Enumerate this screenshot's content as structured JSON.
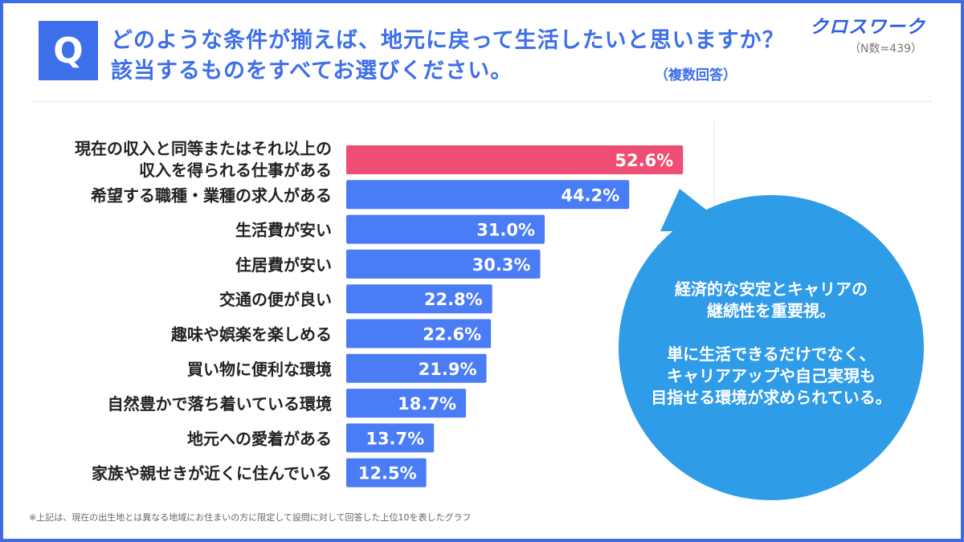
{
  "question": {
    "badge": "Q",
    "line1": "どのような条件が揃えば、地元に戻って生活したいと思いますか？",
    "line2": "該当するものをすべてお選びください。",
    "multi_answer_note": "（複数回答）"
  },
  "brand": {
    "name": "クロスワーク",
    "sample_size": "（N数=439）"
  },
  "chart_data": {
    "type": "bar",
    "orientation": "horizontal",
    "categories": [
      [
        "現在の収入と同等またはそれ以上の",
        "収入を得られる仕事がある"
      ],
      [
        "希望する職種・業種の求人がある"
      ],
      [
        "生活費が安い"
      ],
      [
        "住居費が安い"
      ],
      [
        "交通の便が良い"
      ],
      [
        "趣味や娯楽を楽しめる"
      ],
      [
        "買い物に便利な環境"
      ],
      [
        "自然豊かで落ち着いている環境"
      ],
      [
        "地元への愛着がある"
      ],
      [
        "家族や親せきが近くに住んでいる"
      ]
    ],
    "values": [
      52.6,
      44.2,
      31.0,
      30.3,
      22.8,
      22.6,
      21.9,
      18.7,
      13.7,
      12.5
    ],
    "value_labels": [
      "52.6%",
      "44.2%",
      "31.0%",
      "30.3%",
      "22.8%",
      "22.6%",
      "21.9%",
      "18.7%",
      "13.7%",
      "12.5%"
    ],
    "unit": "%",
    "highlight_color": "#ee4d74",
    "bar_color": "#4a7cf6",
    "xlim": [
      0,
      100
    ],
    "grid": false
  },
  "callout": {
    "color": "#2f9ce8",
    "lines": [
      "経済的な安定とキャリアの",
      "継続性を重要視。",
      "",
      "単に生活できるだけでなく、",
      "キャリアアップや自己実現も",
      "目指せる環境が求められている。"
    ]
  },
  "footnote": "※上記は、現在の出生地とは異なる地域にお住まいの方に限定して設問に対して回答した上位10を表したグラフ"
}
